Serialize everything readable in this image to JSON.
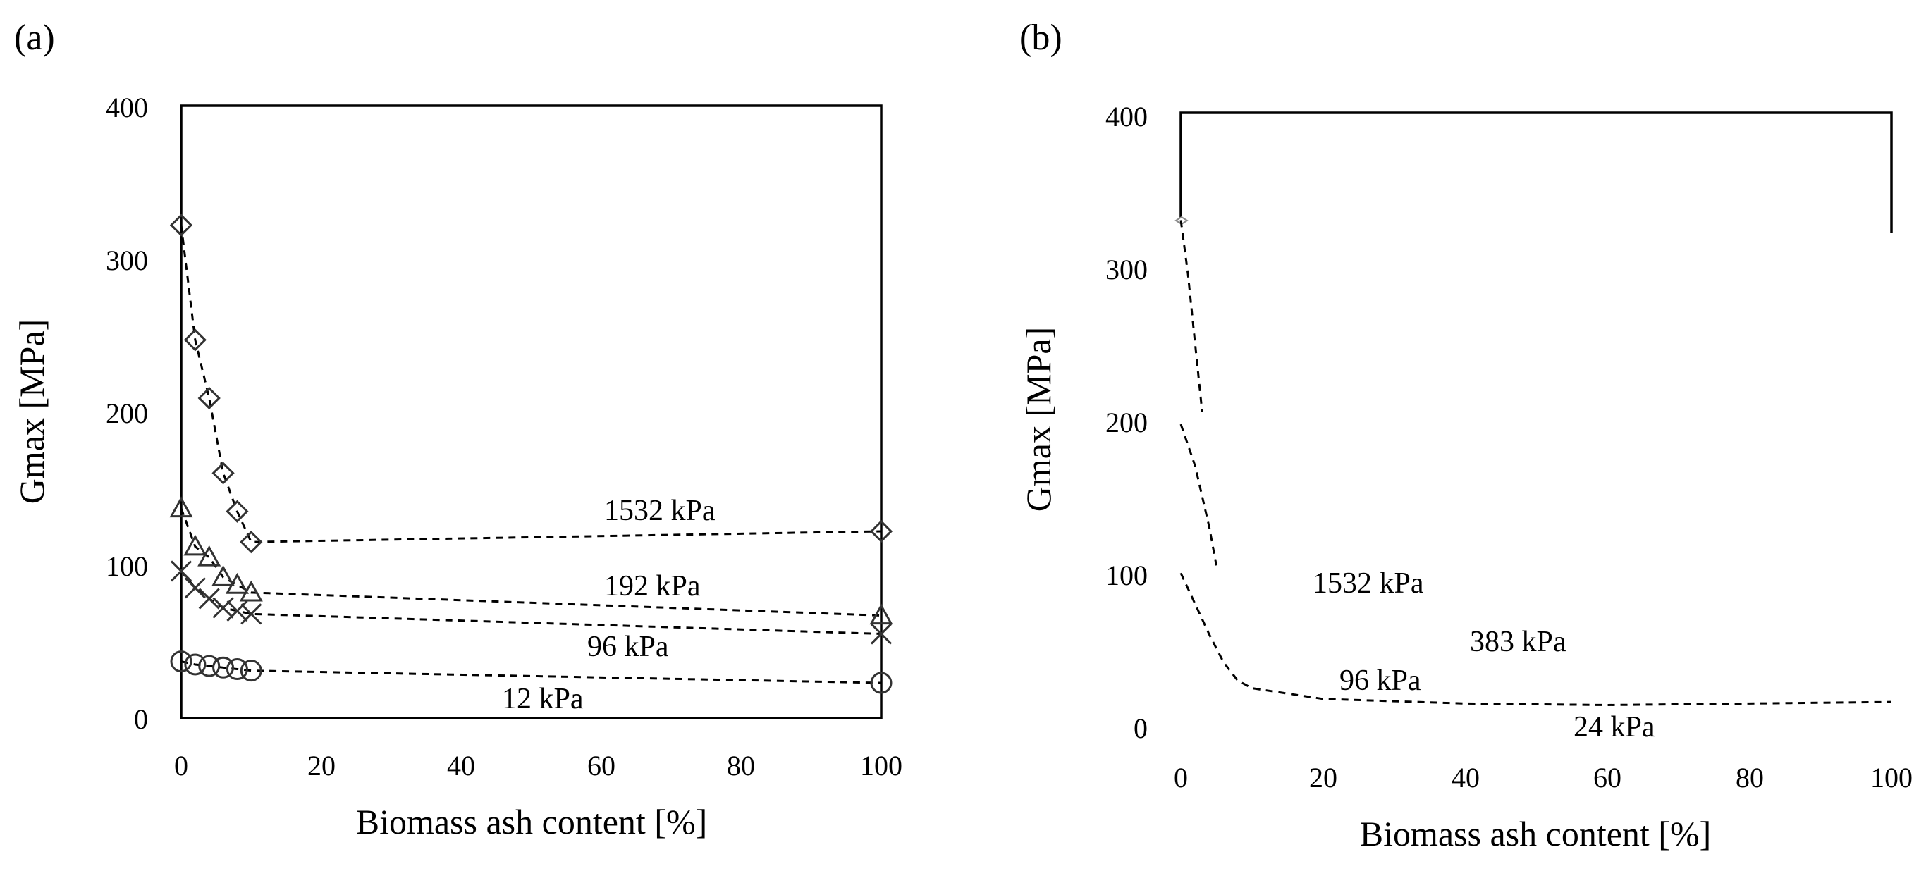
{
  "chart_data": [
    {
      "panel": "(a)",
      "type": "scatter",
      "xlabel": "Biomass ash content [%]",
      "ylabel": "Gmax [MPa]",
      "xlim": [
        0,
        100
      ],
      "ylim": [
        0,
        400
      ],
      "xticks": [
        "0",
        "20",
        "40",
        "60",
        "80",
        "100"
      ],
      "yticks": [
        "0",
        "100",
        "200",
        "300",
        "400"
      ],
      "series": [
        {
          "name": "1532 kPa",
          "marker": "diamond",
          "x": [
            0,
            2,
            4,
            6,
            8,
            10,
            100
          ],
          "y": [
            322,
            247,
            209,
            160,
            135,
            115,
            122
          ]
        },
        {
          "name": "192 kPa",
          "marker": "triangle",
          "x": [
            0,
            2,
            4,
            6,
            8,
            10,
            100
          ],
          "y": [
            137,
            112,
            105,
            92,
            87,
            82,
            67
          ]
        },
        {
          "name": "96 kPa",
          "marker": "cross",
          "x": [
            0,
            2,
            4,
            6,
            8,
            10,
            100
          ],
          "y": [
            96,
            85,
            78,
            72,
            70,
            68,
            55
          ]
        },
        {
          "name": "12 kPa",
          "marker": "circle",
          "x": [
            0,
            2,
            4,
            6,
            8,
            10,
            100
          ],
          "y": [
            37,
            35,
            34,
            33,
            32,
            31,
            23
          ]
        }
      ],
      "annotations": [
        {
          "text": "1532 kPa",
          "x": 60,
          "y": 138
        },
        {
          "text": "192 kPa",
          "x": 60,
          "y": 87
        },
        {
          "text": "96 kPa",
          "x": 57,
          "y": 47
        },
        {
          "text": "12 kPa",
          "x": 48,
          "y": 12
        }
      ]
    },
    {
      "panel": "(b)",
      "type": "line",
      "xlabel": "Biomass ash content [%]",
      "ylabel": "Gmax [MPa]",
      "xlim": [
        0,
        100
      ],
      "ylim": [
        0,
        400
      ],
      "xticks": [
        "0",
        "20",
        "40",
        "60",
        "80",
        "100"
      ],
      "yticks": [
        "0",
        "100",
        "200",
        "300",
        "400"
      ],
      "series": [
        {
          "label": "1532 kPa",
          "style": "dashed",
          "x": [
            0,
            1,
            2,
            3
          ],
          "y": [
            330,
            295,
            250,
            205
          ]
        },
        {
          "label": "383 kPa",
          "style": "dashed",
          "x": [
            0,
            2,
            4,
            5
          ],
          "y": [
            197,
            170,
            130,
            105
          ]
        },
        {
          "label": "96 kPa",
          "style": "dashed",
          "x": [
            0,
            2,
            4,
            6,
            8,
            10,
            20,
            40,
            60,
            80,
            100
          ],
          "y": [
            100,
            80,
            60,
            42,
            30,
            25,
            18,
            15,
            14,
            15,
            16
          ]
        }
      ],
      "annotations": [
        {
          "text": "1532 kPa",
          "x": 29,
          "y": 92
        },
        {
          "text": "383 kPa",
          "x": 52,
          "y": 55
        },
        {
          "text": "96 kPa",
          "x": 28,
          "y": 28
        },
        {
          "text": "24 kPa",
          "x": 64,
          "y": -2
        }
      ]
    }
  ]
}
